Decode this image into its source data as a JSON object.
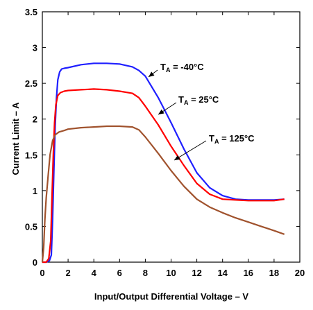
{
  "chart_data": {
    "type": "line",
    "title": "",
    "xlabel": "Input/Output Differential Voltage – V",
    "ylabel": "Current Limit – A",
    "xlim": [
      0,
      20
    ],
    "ylim": [
      0,
      3.5
    ],
    "x_ticks": [
      0,
      2,
      4,
      6,
      8,
      10,
      12,
      14,
      16,
      18,
      20
    ],
    "y_ticks": [
      0,
      0.5,
      1,
      1.5,
      2,
      2.5,
      3,
      3.5
    ],
    "x_tick_labels": [
      "0",
      "2",
      "4",
      "6",
      "8",
      "10",
      "12",
      "14",
      "16",
      "18",
      "20"
    ],
    "y_tick_labels": [
      "0",
      "0.5",
      "1",
      "1.5",
      "2",
      "2.5",
      "3",
      "3.5"
    ],
    "grid": false,
    "series": [
      {
        "color": "#1f1fff",
        "annotation": {
          "main": "T",
          "sub": "A",
          "rest": " = -40°C"
        },
        "x": [
          0,
          0.3,
          0.55,
          0.7,
          0.8,
          0.9,
          1.0,
          1.1,
          1.2,
          1.35,
          1.5,
          1.7,
          2,
          3,
          4,
          5,
          6,
          7,
          7.5,
          8,
          9,
          10,
          11,
          12,
          13,
          14,
          15,
          16,
          17,
          18,
          18.8
        ],
        "y": [
          0,
          0,
          0.02,
          0.1,
          0.6,
          1.3,
          1.9,
          2.3,
          2.55,
          2.66,
          2.7,
          2.71,
          2.72,
          2.76,
          2.78,
          2.78,
          2.77,
          2.73,
          2.68,
          2.6,
          2.3,
          1.95,
          1.58,
          1.25,
          1.04,
          0.93,
          0.88,
          0.87,
          0.87,
          0.87,
          0.88
        ]
      },
      {
        "color": "#ff0000",
        "annotation": {
          "main": "T",
          "sub": "A",
          "rest": " = 25°C"
        },
        "x": [
          0,
          0.3,
          0.5,
          0.65,
          0.75,
          0.85,
          0.95,
          1.05,
          1.2,
          1.4,
          1.7,
          2,
          3,
          4,
          5,
          6,
          7,
          7.5,
          8,
          9,
          10,
          11,
          12,
          13,
          14,
          15,
          16,
          17,
          18,
          18.8
        ],
        "y": [
          0,
          0,
          0.05,
          0.3,
          0.9,
          1.5,
          1.95,
          2.2,
          2.33,
          2.37,
          2.39,
          2.4,
          2.41,
          2.42,
          2.41,
          2.39,
          2.36,
          2.3,
          2.18,
          1.92,
          1.62,
          1.35,
          1.1,
          0.95,
          0.88,
          0.87,
          0.86,
          0.86,
          0.86,
          0.88
        ]
      },
      {
        "color": "#a0522d",
        "annotation": {
          "main": "T",
          "sub": "A",
          "rest": " = 125°C"
        },
        "x": [
          0,
          0.1,
          0.2,
          0.3,
          0.45,
          0.6,
          0.8,
          1.0,
          1.3,
          1.7,
          2,
          3,
          4,
          5,
          6,
          7,
          7.5,
          8,
          9,
          10,
          11,
          12,
          13,
          14,
          15,
          16,
          17,
          18,
          18.8
        ],
        "y": [
          0,
          0.2,
          0.6,
          0.9,
          1.2,
          1.5,
          1.7,
          1.78,
          1.82,
          1.84,
          1.86,
          1.88,
          1.89,
          1.9,
          1.9,
          1.89,
          1.85,
          1.75,
          1.52,
          1.28,
          1.06,
          0.88,
          0.77,
          0.69,
          0.62,
          0.56,
          0.5,
          0.44,
          0.39
        ]
      }
    ]
  }
}
